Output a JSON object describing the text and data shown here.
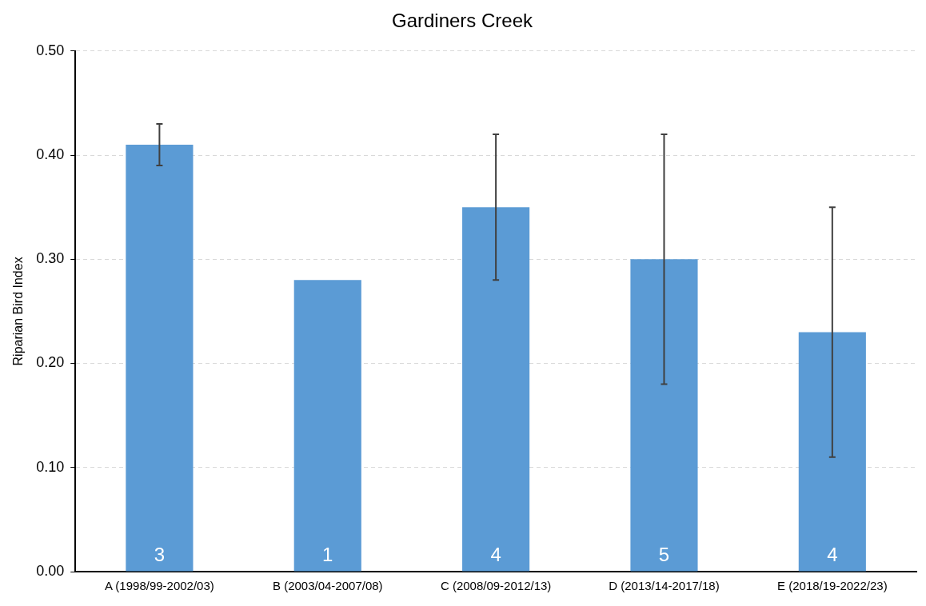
{
  "chart_data": {
    "type": "bar",
    "title": "Gardiners Creek",
    "ylabel": "Riparian Bird Index",
    "categories": [
      "A (1998/99-2002/03)",
      "B (2003/04-2007/08)",
      "C (2008/09-2012/13)",
      "D (2013/14-2017/18)",
      "E (2018/19-2022/23)"
    ],
    "values": [
      0.41,
      0.28,
      0.35,
      0.3,
      0.23
    ],
    "errors": [
      [
        0.39,
        0.43
      ],
      null,
      [
        0.28,
        0.42
      ],
      [
        0.18,
        0.42
      ],
      [
        0.11,
        0.35
      ]
    ],
    "color": "#5b9bd5",
    "ylim": [
      0,
      0.5
    ],
    "yticks": [
      {
        "value": 0,
        "label": "0.00"
      },
      {
        "value": 0.1,
        "label": "0.10"
      },
      {
        "value": 0.2,
        "label": "0.20"
      },
      {
        "value": 0.3,
        "label": "0.30"
      },
      {
        "value": 0.4,
        "label": "0.40"
      },
      {
        "value": 0.5,
        "label": "0.50"
      }
    ],
    "grid": "y",
    "legend": false,
    "annotations": [
      "3",
      "1",
      "4",
      "5",
      "4"
    ]
  }
}
